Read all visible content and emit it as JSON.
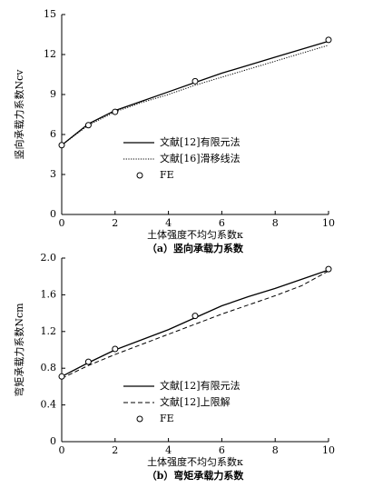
{
  "chart_data": [
    {
      "type": "line",
      "caption": "（a）竖向承载力系数",
      "xlabel": "土体强度不均匀系数κ",
      "ylabel": "竖向承载力系数Ncv",
      "xlim": [
        0,
        10
      ],
      "xticks": [
        0,
        2,
        4,
        6,
        8,
        10
      ],
      "ylim": [
        0,
        15
      ],
      "yticks": [
        0,
        3,
        6,
        9,
        12,
        15
      ],
      "series": [
        {
          "name": "文献[12]有限元法",
          "color": "#000000",
          "style": "solid",
          "x": [
            0,
            1,
            2,
            3,
            4,
            5,
            6,
            7,
            8,
            9,
            10
          ],
          "values": [
            5.2,
            6.8,
            7.8,
            8.5,
            9.2,
            9.9,
            10.6,
            11.2,
            11.8,
            12.4,
            13.0
          ]
        },
        {
          "name": "文献[16]滑移线法",
          "color": "#000000",
          "style": "dotted",
          "x": [
            0,
            1,
            2,
            3,
            4,
            5,
            6,
            7,
            8,
            9,
            10
          ],
          "values": [
            5.2,
            6.7,
            7.7,
            8.4,
            9.0,
            9.7,
            10.3,
            10.9,
            11.5,
            12.1,
            12.7
          ]
        },
        {
          "name": "FE",
          "color": "#000000",
          "style": "marker",
          "x": [
            0,
            1,
            2,
            5,
            10
          ],
          "values": [
            5.2,
            6.7,
            7.7,
            10.0,
            13.1
          ]
        }
      ]
    },
    {
      "type": "line",
      "caption": "（b）弯矩承载力系数",
      "xlabel": "土体强度不均匀系数κ",
      "ylabel": "弯矩承载力系数Ncm",
      "xlim": [
        0,
        10
      ],
      "xticks": [
        0,
        2,
        4,
        6,
        8,
        10
      ],
      "ylim": [
        0,
        2
      ],
      "yticks": [
        0,
        0.4,
        0.8,
        1.2,
        1.6,
        {
          "value": 2,
          "label": "2.0"
        }
      ],
      "series": [
        {
          "name": "文献[12]有限元法",
          "color": "#000000",
          "style": "solid",
          "x": [
            0,
            1,
            2,
            3,
            4,
            5,
            6,
            7,
            8,
            9,
            10
          ],
          "values": [
            0.71,
            0.86,
            1.0,
            1.11,
            1.22,
            1.35,
            1.48,
            1.58,
            1.67,
            1.77,
            1.87
          ]
        },
        {
          "name": "文献[12]上限解",
          "color": "#000000",
          "style": "dashed",
          "x": [
            0,
            1,
            2,
            3,
            4,
            5,
            6,
            7,
            8,
            9,
            10
          ],
          "values": [
            0.69,
            0.83,
            0.95,
            1.06,
            1.17,
            1.28,
            1.39,
            1.49,
            1.59,
            1.7,
            1.86
          ]
        },
        {
          "name": "FE",
          "color": "#000000",
          "style": "marker",
          "x": [
            0,
            1,
            2,
            5,
            10
          ],
          "values": [
            0.71,
            0.87,
            1.01,
            1.37,
            1.88
          ]
        }
      ]
    }
  ]
}
